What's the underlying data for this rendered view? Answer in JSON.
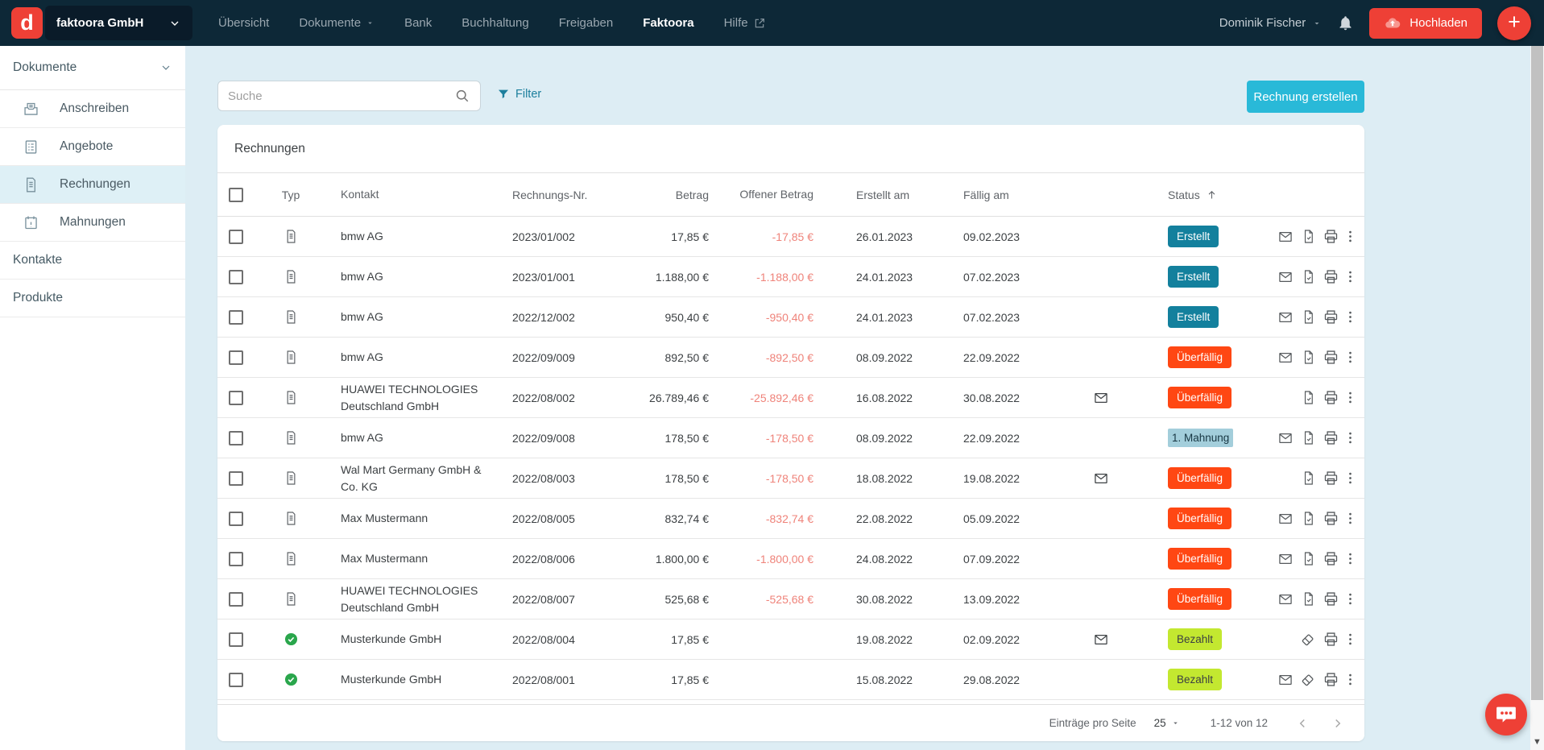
{
  "navbar": {
    "logo_letter": "d",
    "company": "faktoora GmbH",
    "items": [
      {
        "id": "uebersicht",
        "label": "Übersicht"
      },
      {
        "id": "dokumente",
        "label": "Dokumente",
        "dropdown": true
      },
      {
        "id": "bank",
        "label": "Bank"
      },
      {
        "id": "buchhaltung",
        "label": "Buchhaltung"
      },
      {
        "id": "freigaben",
        "label": "Freigaben"
      },
      {
        "id": "faktoora",
        "label": "Faktoora",
        "active": true
      },
      {
        "id": "hilfe",
        "label": "Hilfe",
        "external": true
      }
    ],
    "user_name": "Dominik Fischer",
    "upload_label": "Hochladen"
  },
  "sidebar": {
    "section_label": "Dokumente",
    "subitems": [
      {
        "id": "anschreiben",
        "label": "Anschreiben",
        "icon": "letter-icon",
        "active": false
      },
      {
        "id": "angebote",
        "label": "Angebote",
        "icon": "list-icon",
        "active": false
      },
      {
        "id": "rechnungen",
        "label": "Rechnungen",
        "icon": "invoice-icon",
        "active": true
      },
      {
        "id": "mahnungen",
        "label": "Mahnungen",
        "icon": "calendar-icon",
        "active": false
      }
    ],
    "items": [
      {
        "id": "kontakte",
        "label": "Kontakte"
      },
      {
        "id": "produkte",
        "label": "Produkte"
      }
    ]
  },
  "toolbar": {
    "search_placeholder": "Suche",
    "filter_label": "Filter",
    "create_button_label": "Rechnung erstellen"
  },
  "table": {
    "title": "Rechnungen",
    "columns": {
      "typ": "Typ",
      "kontakt": "Kontakt",
      "nr": "Rechnungs-Nr.",
      "betrag": "Betrag",
      "offener": "Offener Betrag",
      "erstellt": "Erstellt am",
      "faellig": "Fällig am",
      "status": "Status"
    },
    "sort_icon": "arrow-up-icon",
    "rows": [
      {
        "typ": "invoice",
        "kontakt": "bmw AG",
        "nr": "2023/01/002",
        "betrag": "17,85 €",
        "offener": "-17,85 €",
        "erstellt": "26.01.2023",
        "faellig": "09.02.2023",
        "sent": false,
        "status": {
          "label": "Erstellt",
          "type": "created"
        },
        "actions": {
          "mail": true,
          "mid": "file-check-icon"
        }
      },
      {
        "typ": "invoice",
        "kontakt": "bmw AG",
        "nr": "2023/01/001",
        "betrag": "1.188,00 €",
        "offener": "-1.188,00 €",
        "erstellt": "24.01.2023",
        "faellig": "07.02.2023",
        "sent": false,
        "status": {
          "label": "Erstellt",
          "type": "created"
        },
        "actions": {
          "mail": true,
          "mid": "file-check-icon"
        }
      },
      {
        "typ": "invoice",
        "kontakt": "bmw AG",
        "nr": "2022/12/002",
        "betrag": "950,40 €",
        "offener": "-950,40 €",
        "erstellt": "24.01.2023",
        "faellig": "07.02.2023",
        "sent": false,
        "status": {
          "label": "Erstellt",
          "type": "created"
        },
        "actions": {
          "mail": true,
          "mid": "file-check-icon"
        }
      },
      {
        "typ": "invoice",
        "kontakt": "bmw AG",
        "nr": "2022/09/009",
        "betrag": "892,50 €",
        "offener": "-892,50 €",
        "erstellt": "08.09.2022",
        "faellig": "22.09.2022",
        "sent": false,
        "status": {
          "label": "Überfällig",
          "type": "overdue"
        },
        "actions": {
          "mail": true,
          "mid": "file-check-icon"
        }
      },
      {
        "typ": "invoice",
        "kontakt": "HUAWEI TECHNOLOGIES Deutschland GmbH",
        "nr": "2022/08/002",
        "betrag": "26.789,46 €",
        "offener": "-25.892,46 €",
        "erstellt": "16.08.2022",
        "faellig": "30.08.2022",
        "sent": true,
        "status": {
          "label": "Überfällig",
          "type": "overdue"
        },
        "actions": {
          "mail": false,
          "mid": "file-check-icon"
        }
      },
      {
        "typ": "invoice",
        "kontakt": "bmw AG",
        "nr": "2022/09/008",
        "betrag": "178,50 €",
        "offener": "-178,50 €",
        "erstellt": "08.09.2022",
        "faellig": "22.09.2022",
        "sent": false,
        "status": {
          "label": "1. Mahnung",
          "type": "reminder"
        },
        "actions": {
          "mail": true,
          "mid": "file-check-icon"
        }
      },
      {
        "typ": "invoice",
        "kontakt": "Wal Mart Germany GmbH & Co. KG",
        "nr": "2022/08/003",
        "betrag": "178,50 €",
        "offener": "-178,50 €",
        "erstellt": "18.08.2022",
        "faellig": "19.08.2022",
        "sent": true,
        "status": {
          "label": "Überfällig",
          "type": "overdue"
        },
        "actions": {
          "mail": false,
          "mid": "file-check-icon"
        }
      },
      {
        "typ": "invoice",
        "kontakt": "Max Mustermann",
        "nr": "2022/08/005",
        "betrag": "832,74 €",
        "offener": "-832,74 €",
        "erstellt": "22.08.2022",
        "faellig": "05.09.2022",
        "sent": false,
        "status": {
          "label": "Überfällig",
          "type": "overdue"
        },
        "actions": {
          "mail": true,
          "mid": "file-check-icon"
        }
      },
      {
        "typ": "invoice",
        "kontakt": "Max Mustermann",
        "nr": "2022/08/006",
        "betrag": "1.800,00 €",
        "offener": "-1.800,00 €",
        "erstellt": "24.08.2022",
        "faellig": "07.09.2022",
        "sent": false,
        "status": {
          "label": "Überfällig",
          "type": "overdue"
        },
        "actions": {
          "mail": true,
          "mid": "file-check-icon"
        }
      },
      {
        "typ": "invoice",
        "kontakt": "HUAWEI TECHNOLOGIES Deutschland GmbH",
        "nr": "2022/08/007",
        "betrag": "525,68 €",
        "offener": "-525,68 €",
        "erstellt": "30.08.2022",
        "faellig": "13.09.2022",
        "sent": false,
        "status": {
          "label": "Überfällig",
          "type": "overdue"
        },
        "actions": {
          "mail": true,
          "mid": "file-check-icon"
        }
      },
      {
        "typ": "paid",
        "kontakt": "Musterkunde GmbH",
        "nr": "2022/08/004",
        "betrag": "17,85 €",
        "offener": "",
        "erstellt": "19.08.2022",
        "faellig": "02.09.2022",
        "sent": true,
        "status": {
          "label": "Bezahlt",
          "type": "paid"
        },
        "actions": {
          "mail": false,
          "mid": "eraser-icon"
        }
      },
      {
        "typ": "paid",
        "kontakt": "Musterkunde GmbH",
        "nr": "2022/08/001",
        "betrag": "17,85 €",
        "offener": "",
        "erstellt": "15.08.2022",
        "faellig": "29.08.2022",
        "sent": false,
        "status": {
          "label": "Bezahlt",
          "type": "paid"
        },
        "actions": {
          "mail": true,
          "mid": "eraser-icon"
        }
      }
    ]
  },
  "pagination": {
    "per_page_label": "Einträge pro Seite",
    "per_page_value": "25",
    "range_label": "1-12 von 12"
  },
  "colors": {
    "accent_red": "#ee4036",
    "navbar_bg": "#0d2837",
    "page_bg": "#ddedf4",
    "create_button": "#29b9d8",
    "badge_created": "#13809d",
    "badge_overdue": "#ff4713",
    "badge_paid": "#c3e830",
    "badge_reminder": "#a3cedb",
    "negative_amount": "#ef837a",
    "filter_teal": "#1c7f9d"
  }
}
